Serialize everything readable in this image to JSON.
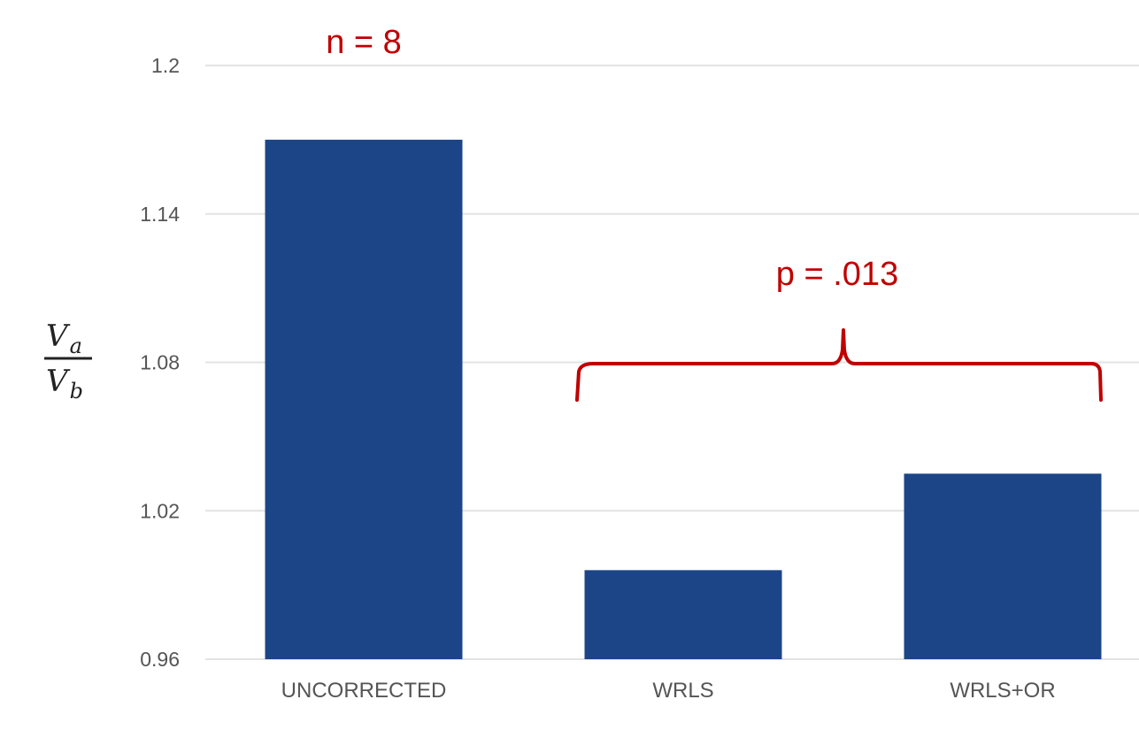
{
  "chart_data": {
    "type": "bar",
    "categories": [
      "UNCORRECTED",
      "WRLS",
      "WRLS+OR"
    ],
    "values": [
      1.17,
      0.996,
      1.035
    ],
    "title": "",
    "xlabel": "",
    "ylabel": {
      "main": "V",
      "numerator_sub": "a",
      "denominator_sub": "b"
    },
    "ylim": [
      0.96,
      1.2
    ],
    "yticks": [
      "0.96",
      "1.02",
      "1.08",
      "1.14",
      "1.2"
    ],
    "grid": true,
    "annotations": {
      "n_label": "n = 8",
      "p_label": "p = .013"
    },
    "colors": {
      "bar": "#1c4587",
      "annotation": "#c00000",
      "grid": "#e3e3e3",
      "tick_text": "#555555"
    }
  }
}
